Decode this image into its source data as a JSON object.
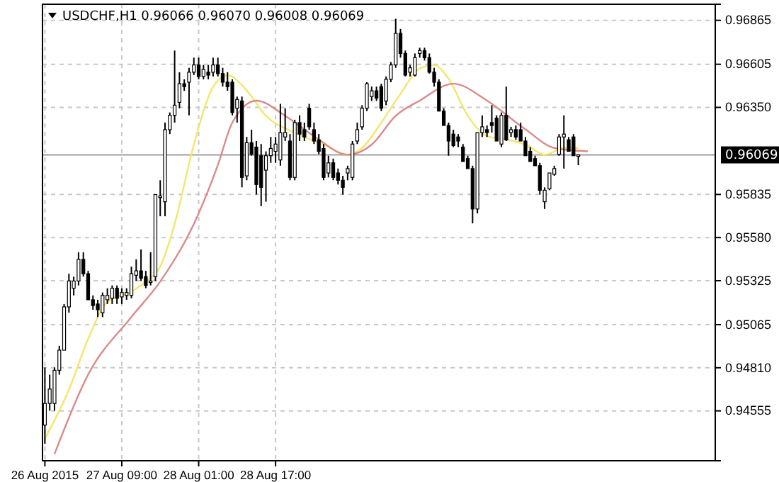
{
  "chart_data": {
    "type": "candlestick",
    "title": "USDCHF,H1 0.96066 0.96070 0.96008 0.96069",
    "categories": [
      "26 Aug 2015",
      null,
      null,
      null,
      null,
      null,
      null,
      null,
      null,
      null,
      null,
      null,
      null,
      null,
      null,
      null,
      "27 Aug 09:00",
      null,
      null,
      null,
      null,
      null,
      null,
      null,
      null,
      null,
      null,
      null,
      null,
      null,
      null,
      null,
      "28 Aug 01:00",
      null,
      null,
      null,
      null,
      null,
      null,
      null,
      null,
      null,
      null,
      null,
      null,
      null,
      null,
      null,
      "28 Aug 17:00",
      null,
      null,
      null,
      null,
      null,
      null,
      null,
      null,
      null,
      null,
      null,
      null,
      null,
      null,
      null,
      null,
      null,
      null,
      null,
      null,
      null,
      null,
      null,
      null,
      null,
      null,
      null,
      null,
      null,
      null,
      null,
      null,
      null,
      null,
      null,
      null,
      null,
      null,
      null,
      null,
      null,
      null,
      null,
      null,
      null,
      null,
      null,
      null,
      null,
      null,
      null,
      null,
      null,
      null,
      null,
      null,
      null,
      null,
      null,
      null,
      null,
      null,
      null,
      null,
      null,
      null,
      null,
      null,
      null,
      null,
      null,
      null,
      null,
      null,
      null,
      null,
      null,
      null,
      null,
      null,
      null,
      null,
      null,
      null,
      null,
      null,
      null,
      null,
      null,
      null,
      null
    ],
    "ohlc": [
      [
        0.94471,
        0.94812,
        0.9436,
        0.94599
      ],
      [
        0.94599,
        0.94769,
        0.94556,
        0.94684
      ],
      [
        0.94599,
        0.94812,
        0.94556,
        0.94795
      ],
      [
        0.94795,
        0.9494,
        0.94769,
        0.94914
      ],
      [
        0.94914,
        0.95187,
        0.94914,
        0.9517
      ],
      [
        0.9517,
        0.95366,
        0.95136,
        0.95323
      ],
      [
        0.9528,
        0.95349,
        0.95238,
        0.95323
      ],
      [
        0.95323,
        0.95493,
        0.95297,
        0.95451
      ],
      [
        0.95451,
        0.95493,
        0.95349,
        0.95366
      ],
      [
        0.95366,
        0.95383,
        0.95212,
        0.95212
      ],
      [
        0.95212,
        0.95238,
        0.95153,
        0.95178
      ],
      [
        0.95187,
        0.95212,
        0.9511,
        0.95153
      ],
      [
        0.95136,
        0.95255,
        0.9511,
        0.95238
      ],
      [
        0.95212,
        0.9528,
        0.95187,
        0.95238
      ],
      [
        0.95221,
        0.95297,
        0.95187,
        0.9528
      ],
      [
        0.9528,
        0.95297,
        0.95187,
        0.95221
      ],
      [
        0.95229,
        0.9528,
        0.95187,
        0.95255
      ],
      [
        0.95238,
        0.9528,
        0.95212,
        0.95255
      ],
      [
        0.95238,
        0.95408,
        0.95221,
        0.95366
      ],
      [
        0.95357,
        0.95451,
        0.95323,
        0.95383
      ],
      [
        0.95383,
        0.9551,
        0.95323,
        0.9534
      ],
      [
        0.95349,
        0.95383,
        0.9528,
        0.95297
      ],
      [
        0.95323,
        0.95493,
        0.95297,
        0.95323
      ],
      [
        0.95349,
        0.95834,
        0.95323,
        0.95834
      ],
      [
        0.95817,
        0.95919,
        0.95706,
        0.95826
      ],
      [
        0.95792,
        0.9626,
        0.95706,
        0.96218
      ],
      [
        0.96218,
        0.9632,
        0.96192,
        0.96303
      ],
      [
        0.96303,
        0.96686,
        0.9626,
        0.96363
      ],
      [
        0.9638,
        0.96558,
        0.96345,
        0.9649
      ],
      [
        0.9649,
        0.96516,
        0.96448,
        0.96473
      ],
      [
        0.96499,
        0.96584,
        0.96303,
        0.96558
      ],
      [
        0.96558,
        0.96644,
        0.96541,
        0.96601
      ],
      [
        0.96601,
        0.96644,
        0.96516,
        0.96533
      ],
      [
        0.96533,
        0.96601,
        0.96516,
        0.96575
      ],
      [
        0.96558,
        0.96601,
        0.96516,
        0.96541
      ],
      [
        0.96558,
        0.96644,
        0.96533,
        0.96601
      ],
      [
        0.96601,
        0.96644,
        0.96533,
        0.9655
      ],
      [
        0.9655,
        0.96584,
        0.96473,
        0.96499
      ],
      [
        0.96499,
        0.96558,
        0.96448,
        0.96473
      ],
      [
        0.96499,
        0.96516,
        0.96303,
        0.9632
      ],
      [
        0.96345,
        0.96414,
        0.9626,
        0.96397
      ],
      [
        0.96388,
        0.96414,
        0.95877,
        0.95936
      ],
      [
        0.95945,
        0.96175,
        0.95919,
        0.96141
      ],
      [
        0.96141,
        0.96218,
        0.96064,
        0.96073
      ],
      [
        0.96115,
        0.96151,
        0.95834,
        0.95894
      ],
      [
        0.96064,
        0.96133,
        0.95766,
        0.95877
      ],
      [
        0.95979,
        0.9609,
        0.95792,
        0.96064
      ],
      [
        0.96064,
        0.96175,
        0.96022,
        0.96107
      ],
      [
        0.9609,
        0.96175,
        0.96022,
        0.96133
      ],
      [
        0.96039,
        0.96371,
        0.96005,
        0.96201
      ],
      [
        0.96175,
        0.96345,
        0.96151,
        0.96201
      ],
      [
        0.96151,
        0.96192,
        0.95919,
        0.95936
      ],
      [
        0.95936,
        0.96277,
        0.95919,
        0.9626
      ],
      [
        0.9626,
        0.96303,
        0.96151,
        0.96192
      ],
      [
        0.96218,
        0.9626,
        0.96151,
        0.96175
      ],
      [
        0.96345,
        0.96371,
        0.96218,
        0.96235
      ],
      [
        0.96218,
        0.9626,
        0.96133,
        0.96151
      ],
      [
        0.96158,
        0.96192,
        0.96073,
        0.9609
      ],
      [
        0.96107,
        0.96133,
        0.95919,
        0.95936
      ],
      [
        0.95962,
        0.96064,
        0.95936,
        0.96022
      ],
      [
        0.96022,
        0.96047,
        0.95919,
        0.95936
      ],
      [
        0.95962,
        0.95988,
        0.95894,
        0.95919
      ],
      [
        0.95919,
        0.95945,
        0.95834,
        0.95877
      ],
      [
        0.95962,
        0.96005,
        0.95919,
        0.95988
      ],
      [
        0.95936,
        0.96151,
        0.95919,
        0.96133
      ],
      [
        0.96151,
        0.9626,
        0.96133,
        0.96218
      ],
      [
        0.96235,
        0.96363,
        0.96218,
        0.96345
      ],
      [
        0.96345,
        0.96499,
        0.96328,
        0.9649
      ],
      [
        0.96414,
        0.96473,
        0.96388,
        0.96448
      ],
      [
        0.96448,
        0.96473,
        0.96388,
        0.96405
      ],
      [
        0.96473,
        0.9649,
        0.96328,
        0.96345
      ],
      [
        0.96388,
        0.96533,
        0.96363,
        0.96516
      ],
      [
        0.96516,
        0.96618,
        0.96499,
        0.96601
      ],
      [
        0.96601,
        0.96874,
        0.96584,
        0.96788
      ],
      [
        0.96788,
        0.96814,
        0.96644,
        0.96669
      ],
      [
        0.96669,
        0.96686,
        0.96533,
        0.96541
      ],
      [
        0.96558,
        0.96601,
        0.96533,
        0.96584
      ],
      [
        0.96541,
        0.96669,
        0.96533,
        0.96644
      ],
      [
        0.96669,
        0.96703,
        0.96644,
        0.96686
      ],
      [
        0.96686,
        0.96703,
        0.96627,
        0.96644
      ],
      [
        0.96644,
        0.96669,
        0.9655,
        0.96558
      ],
      [
        0.96558,
        0.96584,
        0.96473,
        0.96499
      ],
      [
        0.96499,
        0.96516,
        0.96328,
        0.96328
      ],
      [
        0.96328,
        0.96345,
        0.96243,
        0.96243
      ],
      [
        0.96243,
        0.9626,
        0.96064,
        0.96151
      ],
      [
        0.96192,
        0.96218,
        0.96115,
        0.96124
      ],
      [
        0.96175,
        0.96192,
        0.96115,
        0.96151
      ],
      [
        0.96115,
        0.96133,
        0.9603,
        0.9603
      ],
      [
        0.96047,
        0.96064,
        0.95988,
        0.95988
      ],
      [
        0.95988,
        0.96005,
        0.95664,
        0.95749
      ],
      [
        0.95749,
        0.96201,
        0.95723,
        0.96201
      ],
      [
        0.96201,
        0.96303,
        0.96175,
        0.96235
      ],
      [
        0.96218,
        0.96243,
        0.96175,
        0.96201
      ],
      [
        0.9626,
        0.96363,
        0.96201,
        0.96243
      ],
      [
        0.96286,
        0.96303,
        0.96151,
        0.96151
      ],
      [
        0.96133,
        0.9632,
        0.96115,
        0.96303
      ],
      [
        0.96303,
        0.96473,
        0.96151,
        0.96158
      ],
      [
        0.96201,
        0.96235,
        0.96175,
        0.96218
      ],
      [
        0.96218,
        0.96243,
        0.96158,
        0.96175
      ],
      [
        0.96218,
        0.9626,
        0.96151,
        0.96151
      ],
      [
        0.96151,
        0.96175,
        0.96064,
        0.96064
      ],
      [
        0.9609,
        0.96115,
        0.9603,
        0.9603
      ],
      [
        0.96047,
        0.96064,
        0.96005,
        0.96005
      ],
      [
        0.96005,
        0.96022,
        0.95834,
        0.9586
      ],
      [
        0.95792,
        0.95877,
        0.95749,
        0.9586
      ],
      [
        0.95868,
        0.95962,
        0.9586,
        0.95962
      ],
      [
        0.95954,
        0.96005,
        0.95945,
        0.95988
      ],
      [
        0.96073,
        0.96192,
        0.96064,
        0.96175
      ],
      [
        0.96175,
        0.96303,
        0.95988,
        0.96192
      ],
      [
        0.96158,
        0.96175,
        0.9609,
        0.9609
      ],
      [
        0.96175,
        0.96192,
        0.96064,
        0.96064
      ],
      [
        0.96066,
        0.9607,
        0.96008,
        0.96069
      ],
      null,
      null,
      null,
      null,
      null,
      null,
      null,
      null,
      null,
      null,
      null,
      null,
      null,
      null,
      null,
      null,
      null,
      null,
      null,
      null,
      null,
      null,
      null,
      null,
      null,
      null,
      null,
      null
    ],
    "series": [
      {
        "type": "line",
        "color": "#f5e66a",
        "values": [
          0.9439,
          null,
          null,
          null,
          null,
          0.9468,
          null,
          null,
          null,
          0.9498,
          null,
          null,
          null,
          0.952,
          null,
          null,
          null,
          null,
          0.9526,
          null,
          null,
          0.9532,
          null,
          null,
          0.9541,
          null,
          null,
          0.9566,
          null,
          null,
          null,
          0.9613,
          null,
          null,
          null,
          0.9647,
          null,
          null,
          0.9654,
          null,
          null,
          null,
          0.9645,
          null,
          null,
          null,
          0.963,
          null,
          null,
          null,
          null,
          null,
          0.962,
          null,
          null,
          null,
          null,
          null,
          0.9613,
          null,
          null,
          null,
          null,
          0.9607,
          null,
          null,
          0.9611,
          null,
          null,
          null,
          0.9626,
          null,
          null,
          null,
          0.9643,
          null,
          null,
          null,
          0.9658,
          null,
          null,
          0.966,
          null,
          null,
          0.9652,
          null,
          null,
          null,
          0.963,
          null,
          null,
          null,
          0.9618,
          null,
          null,
          null,
          0.9616,
          null,
          null,
          null,
          0.9613,
          null,
          null,
          null,
          0.9607,
          null,
          null,
          null,
          0.9611,
          null,
          null,
          0.9611,
          null,
          null,
          null,
          null,
          null,
          null,
          null,
          null,
          null,
          null,
          null,
          null,
          null,
          null,
          null,
          null,
          null,
          null,
          null,
          null,
          null,
          null,
          null,
          null,
          null,
          null,
          null,
          null
        ]
      },
      {
        "type": "line",
        "color": "#d98b8b",
        "values": [
          null,
          null,
          0.943,
          null,
          null,
          null,
          null,
          null,
          null,
          0.9477,
          null,
          null,
          null,
          null,
          null,
          null,
          null,
          null,
          0.9511,
          null,
          null,
          null,
          null,
          null,
          0.9532,
          null,
          null,
          null,
          null,
          null,
          null,
          0.9566,
          null,
          null,
          null,
          null,
          0.9601,
          null,
          null,
          0.9626,
          null,
          null,
          null,
          null,
          0.9639,
          null,
          null,
          null,
          null,
          null,
          0.963,
          null,
          null,
          null,
          null,
          null,
          0.9618,
          null,
          null,
          null,
          null,
          null,
          null,
          0.9607,
          null,
          null,
          null,
          null,
          0.9613,
          null,
          null,
          null,
          null,
          0.963,
          null,
          null,
          null,
          null,
          0.9639,
          null,
          null,
          null,
          null,
          null,
          null,
          0.9649,
          null,
          null,
          null,
          null,
          null,
          null,
          0.9639,
          null,
          null,
          null,
          null,
          null,
          null,
          null,
          0.9622,
          null,
          null,
          null,
          null,
          null,
          0.9611,
          null,
          null,
          null,
          null,
          null,
          null,
          0.9609,
          null,
          null,
          null,
          null,
          null,
          null,
          null,
          null,
          null,
          null,
          null,
          null,
          null,
          null,
          null,
          null,
          null,
          null,
          null,
          null,
          null,
          null,
          null,
          null,
          null,
          null
        ]
      }
    ],
    "ylim": [
      0.9426,
      0.9696
    ],
    "yticks": [
      {
        "value": 0.94555,
        "label": "0.94555"
      },
      {
        "value": 0.9481,
        "label": "0.94810"
      },
      {
        "value": 0.95065,
        "label": "0.95065"
      },
      {
        "value": 0.95325,
        "label": "0.95325"
      },
      {
        "value": 0.9558,
        "label": "0.95580"
      },
      {
        "value": 0.95835,
        "label": "0.95835"
      },
      {
        "value": 0.9635,
        "label": "0.96350"
      },
      {
        "value": 0.96605,
        "label": "0.96605"
      },
      {
        "value": 0.96865,
        "label": "0.96865"
      }
    ],
    "ref_lines": [
      {
        "axis": "y",
        "value": 0.96069,
        "label": "0.96069",
        "color": "#a0a0a0"
      }
    ],
    "grid": true
  }
}
